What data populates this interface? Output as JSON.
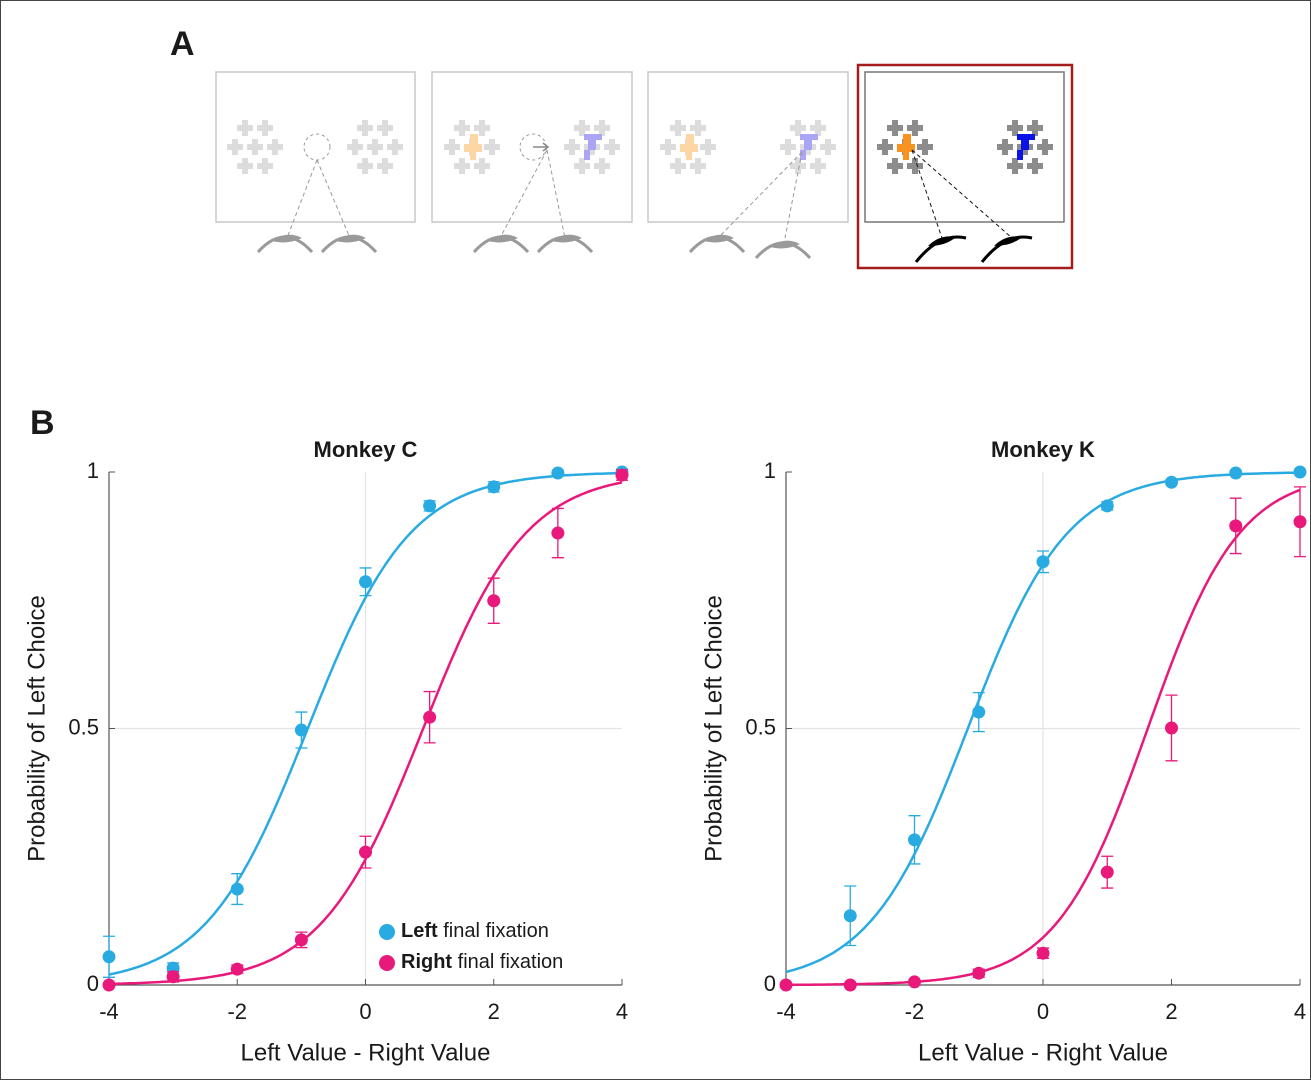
{
  "panels": {
    "a": {
      "label": "A"
    },
    "b": {
      "label": "B"
    }
  },
  "chart_data": [
    {
      "type": "scatter",
      "title": "Monkey C",
      "x_label": "Left Value - Right Value",
      "y_label": "Probability of Left Choice",
      "x": [
        -4,
        -3,
        -2,
        -1,
        0,
        1,
        2,
        3,
        4
      ],
      "xlim": [
        -4,
        4
      ],
      "ylim": [
        0,
        1
      ],
      "xticks": [
        -4,
        -2,
        0,
        2,
        4
      ],
      "yticks": [
        0,
        0.5,
        1
      ],
      "reference_lines": {
        "x": 0,
        "y": 0.5
      },
      "legend": "lower right",
      "series": [
        {
          "name": "Left final fixation",
          "color": "#29abe2",
          "values": [
            0.055,
            0.033,
            0.187,
            0.497,
            0.786,
            0.934,
            0.971,
            0.998,
            1.0
          ],
          "errors": [
            0.04,
            0.01,
            0.03,
            0.035,
            0.027,
            0.01,
            0.01,
            0.003,
            0.002
          ],
          "fit": {
            "x0": -0.9,
            "slope": 1.25
          }
        },
        {
          "name": "Right final fixation",
          "color": "#e8197a",
          "values": [
            0.0,
            0.016,
            0.031,
            0.088,
            0.259,
            0.522,
            0.749,
            0.881,
            0.994
          ],
          "errors": [
            0.003,
            0.01,
            0.008,
            0.015,
            0.031,
            0.05,
            0.044,
            0.048,
            0.01
          ],
          "fit": {
            "x0": 0.9,
            "slope": 1.25
          }
        }
      ]
    },
    {
      "type": "scatter",
      "title": "Monkey K",
      "x_label": "Left Value - Right Value",
      "y_label": "Probability of Left Choice",
      "x": [
        -4,
        -3,
        -2,
        -1,
        0,
        1,
        2,
        3,
        4
      ],
      "xlim": [
        -4,
        4
      ],
      "ylim": [
        0,
        1
      ],
      "xticks": [
        -4,
        -2,
        0,
        2,
        4
      ],
      "yticks": [
        0,
        0.5,
        1
      ],
      "reference_lines": {
        "x": 0,
        "y": 0.5
      },
      "series": [
        {
          "name": "Left final fixation",
          "color": "#29abe2",
          "values": [
            null,
            0.135,
            0.283,
            0.532,
            0.825,
            0.934,
            0.98,
            0.998,
            1.0
          ],
          "errors": [
            null,
            0.058,
            0.047,
            0.038,
            0.021,
            0.008,
            0.005,
            0.003,
            0.002
          ],
          "fit": {
            "x0": -1.17,
            "slope": 1.29
          }
        },
        {
          "name": "Right final fixation",
          "color": "#e8197a",
          "values": [
            0.0,
            0.0,
            0.006,
            0.023,
            0.062,
            0.22,
            0.501,
            0.895,
            0.903
          ],
          "errors": [
            0.002,
            0.002,
            0.004,
            0.008,
            0.01,
            0.031,
            0.064,
            0.054,
            0.068
          ],
          "fit": {
            "x0": 1.63,
            "slope": 1.4
          }
        }
      ]
    }
  ]
}
